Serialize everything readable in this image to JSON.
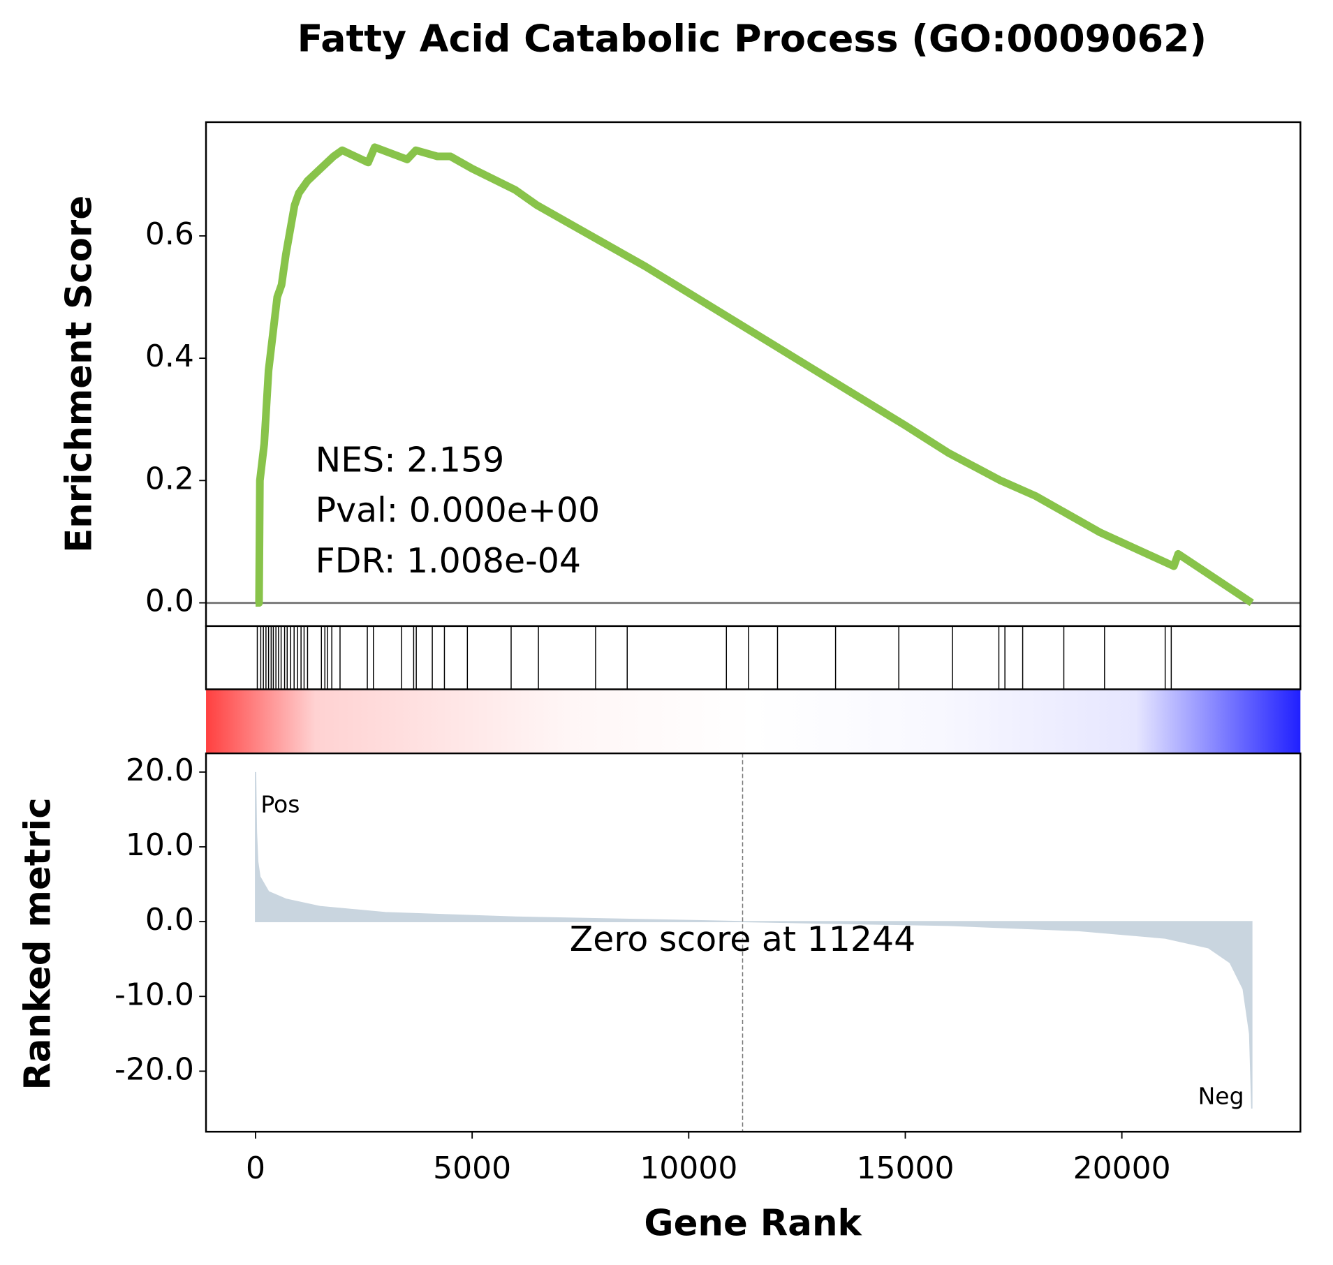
{
  "chart_data": [
    {
      "type": "line",
      "title": "Fatty Acid Catabolic Process (GO:0009062)",
      "ylabel": "Enrichment Score",
      "annotations": [
        "NES: 2.159",
        "Pval: 0.000e+00",
        "FDR: 1.008e-04"
      ],
      "color": "#88c34a",
      "x": [
        0,
        80,
        100,
        200,
        300,
        400,
        500,
        600,
        700,
        800,
        900,
        1000,
        1200,
        1500,
        1800,
        2000,
        2600,
        2750,
        3500,
        3700,
        4200,
        4500,
        5000,
        6000,
        6500,
        8000,
        9000,
        12000,
        15000,
        16000,
        17200,
        18000,
        19500,
        21200,
        21300,
        23000
      ],
      "values": [
        0,
        0,
        0.2,
        0.26,
        0.38,
        0.44,
        0.5,
        0.52,
        0.57,
        0.61,
        0.65,
        0.67,
        0.69,
        0.71,
        0.73,
        0.74,
        0.72,
        0.745,
        0.725,
        0.74,
        0.73,
        0.73,
        0.71,
        0.675,
        0.65,
        0.59,
        0.55,
        0.42,
        0.29,
        0.245,
        0.2,
        0.175,
        0.115,
        0.06,
        0.08,
        0
      ],
      "xlim": [
        -1144,
        24122
      ],
      "ylim": [
        -0.038,
        0.786
      ],
      "yticks": [
        {
          "value": 0,
          "label": "0.0"
        },
        0.2,
        0.4,
        0.6
      ]
    },
    {
      "type": "hits",
      "x": [
        40,
        120,
        180,
        240,
        300,
        360,
        410,
        470,
        530,
        590,
        670,
        730,
        810,
        890,
        970,
        1050,
        1120,
        1200,
        1520,
        1600,
        1660,
        1760,
        1950,
        2580,
        2720,
        3370,
        3650,
        3710,
        4080,
        4360,
        4890,
        5900,
        6530,
        7850,
        8580,
        10870,
        11380,
        12050,
        13390,
        14850,
        16090,
        17160,
        17300,
        17710,
        18660,
        19600,
        21000,
        21140
      ],
      "xlim": [
        -1144,
        24122
      ]
    },
    {
      "type": "area",
      "ylabel": "Ranked metric",
      "xlabel": "Gene Rank",
      "color": "#c9d5df",
      "pos_label": "Pos",
      "neg_label": "Neg",
      "zero_label": "Zero score at 11244",
      "zero_rank": 11244,
      "x": [
        0,
        20,
        50,
        100,
        300,
        700,
        1500,
        3000,
        6000,
        11244,
        16000,
        19000,
        21000,
        22000,
        22500,
        22800,
        22950,
        23000
      ],
      "values": [
        20,
        12,
        8,
        6,
        4,
        3,
        2,
        1.2,
        0.6,
        0,
        -0.5,
        -1.2,
        -2.2,
        -3.5,
        -5.5,
        -9,
        -15,
        -25
      ],
      "xlim": [
        -1144,
        24122
      ],
      "ylim": [
        -28.1,
        22.5
      ],
      "xticks": [
        0,
        5000,
        10000,
        15000,
        20000
      ],
      "yticks": [
        {
          "value": 20,
          "label": "20.0"
        },
        {
          "value": 10,
          "label": "10.0"
        },
        {
          "value": 0,
          "label": "0.0"
        },
        {
          "value": -10,
          "label": "-10.0"
        },
        {
          "value": -20,
          "label": "-20.0"
        }
      ]
    }
  ]
}
